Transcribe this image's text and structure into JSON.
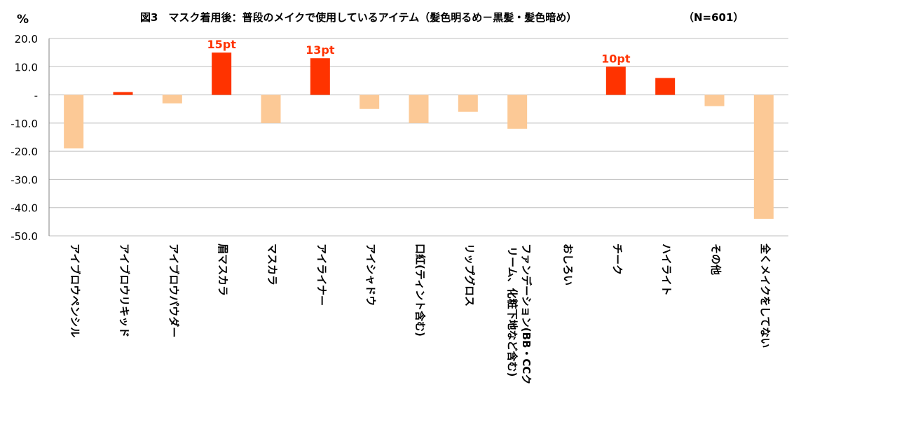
{
  "chart_data": {
    "type": "bar",
    "title": "図3　マスク着用後：普段のメイクで使用しているアイテム（髪色明るめ－黒髪・髪色暗め）",
    "subtitle": "（N=601）",
    "ylabel": "%",
    "ylim": [
      -50,
      20
    ],
    "yticks": [
      {
        "value": 20,
        "label": "20.0"
      },
      {
        "value": 10,
        "label": "10.0"
      },
      {
        "value": 0,
        "label": "-"
      },
      {
        "value": -10,
        "label": "-10.0"
      },
      {
        "value": -20,
        "label": "-20.0"
      },
      {
        "value": -30,
        "label": "-30.0"
      },
      {
        "value": -40,
        "label": "-40.0"
      },
      {
        "value": -50,
        "label": "-50.0"
      }
    ],
    "grid": true,
    "colors": {
      "positive": "#ff3300",
      "negative": "#fcc996",
      "grid": "#bfbfbf",
      "axis": "#808080",
      "annotation": "#ff3300"
    },
    "categories": [
      "アイブロウペンシル",
      "アイブロウリキッド",
      "アイブロウパウダー",
      "眉マスカラ",
      "マスカラ",
      "アイライナー",
      "アイシャドウ",
      "口紅(ティント含む)",
      "リップグロス",
      "ファンデーション(BB・CCクリーム、化粧下地など含む)",
      "おしろい",
      "チーク",
      "ハイライト",
      "その他",
      "全くメイクをしてない"
    ],
    "values": [
      -19,
      1,
      -3,
      15,
      -10,
      13,
      -5,
      -10,
      -6,
      -12,
      0,
      10,
      6,
      -4,
      -44
    ],
    "annotations": [
      {
        "category_index": 3,
        "text": "15pt"
      },
      {
        "category_index": 5,
        "text": "13pt"
      },
      {
        "category_index": 11,
        "text": "10pt"
      }
    ]
  }
}
